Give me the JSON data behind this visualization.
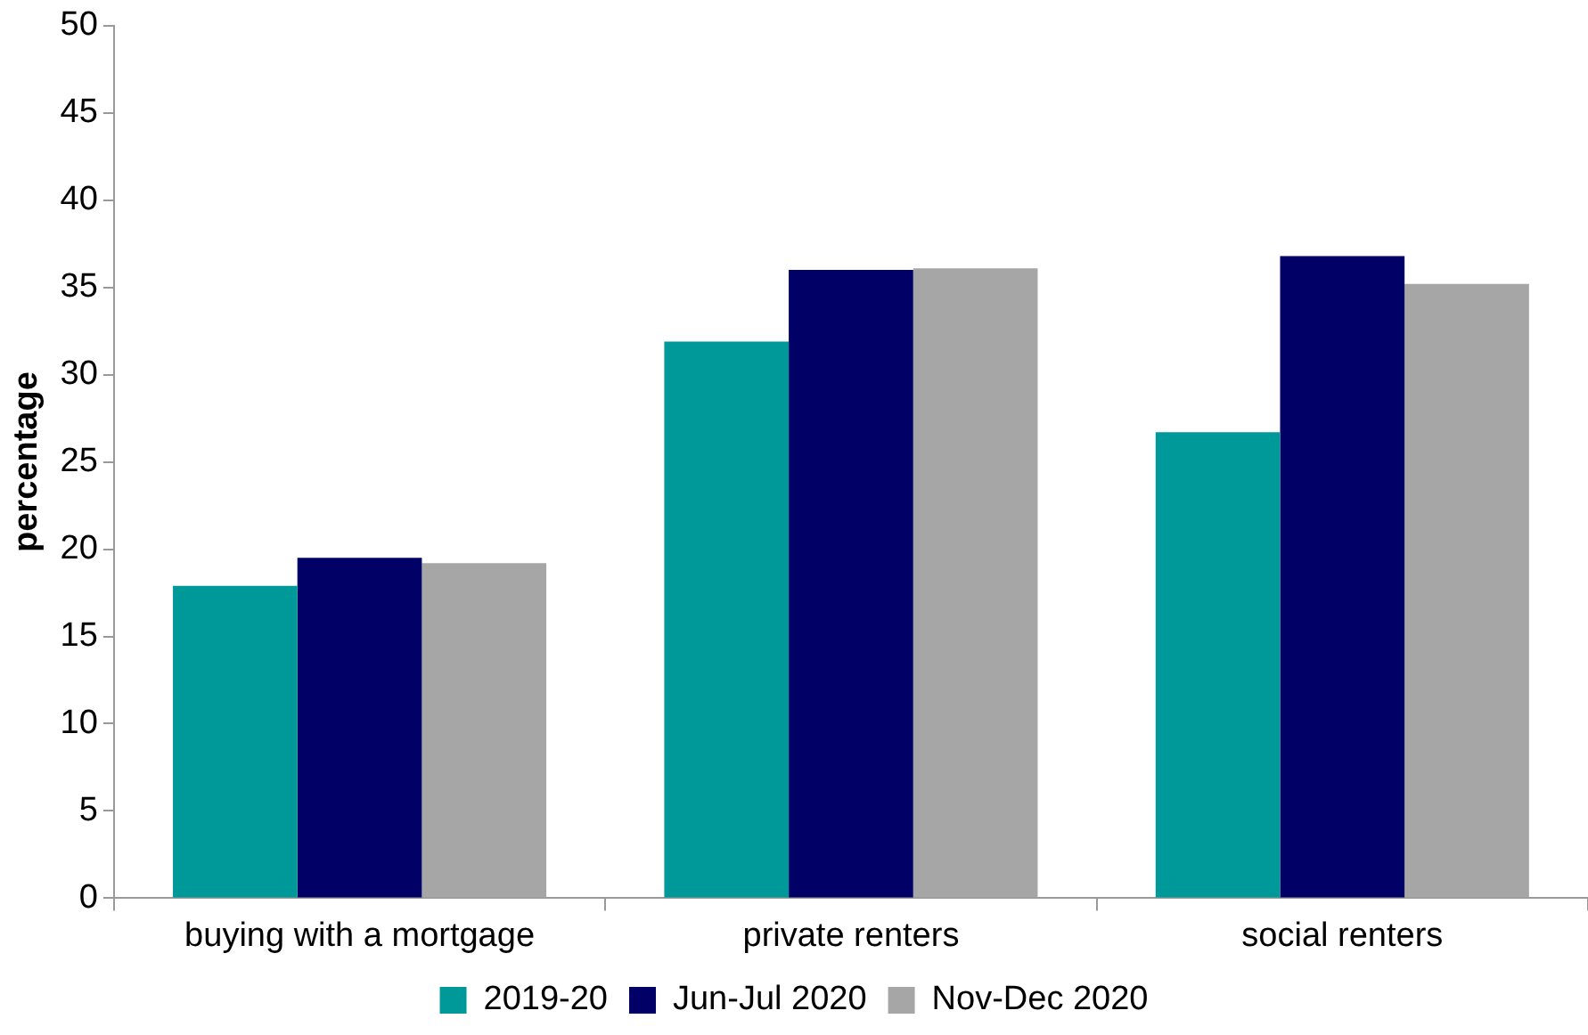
{
  "chart_data": {
    "type": "bar",
    "ylabel": "percentage",
    "categories": [
      "buying with a mortgage",
      "private renters",
      "social renters"
    ],
    "series": [
      {
        "name": "2019-20",
        "color": "#009999",
        "values": [
          17.9,
          31.9,
          26.7
        ]
      },
      {
        "name": "Jun-Jul 2020",
        "color": "#000066",
        "values": [
          19.5,
          36.0,
          36.8
        ]
      },
      {
        "name": "Nov-Dec 2020",
        "color": "#a6a6a6",
        "values": [
          19.2,
          36.1,
          35.2
        ]
      }
    ],
    "ylim": [
      0,
      50
    ],
    "yticks": [
      0,
      5,
      10,
      15,
      20,
      25,
      30,
      35,
      40,
      45,
      50
    ],
    "grid": false,
    "legend": "bottom"
  }
}
